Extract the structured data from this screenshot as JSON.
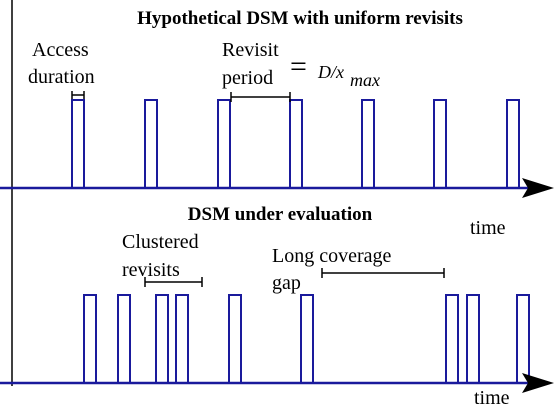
{
  "top": {
    "title": "Hypothetical DSM with uniform revisits",
    "access_label": [
      "Access",
      "duration"
    ],
    "revisit_label": [
      "Revisit",
      "period"
    ],
    "formula": {
      "equals": "=",
      "main": "D/x",
      "subscript": "max"
    },
    "axis_label": "time"
  },
  "bottom": {
    "title": "DSM under evaluation",
    "clustered_label": [
      "Clustered",
      "revisits"
    ],
    "gap_label": [
      "Long coverage",
      "gap"
    ],
    "axis_label": "time"
  }
}
